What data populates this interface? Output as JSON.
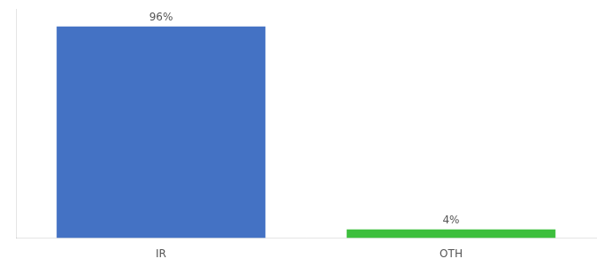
{
  "chart_data": {
    "type": "bar",
    "categories": [
      "IR",
      "OTH"
    ],
    "values": [
      96,
      4
    ],
    "value_labels": [
      "96%",
      "4%"
    ],
    "colors": [
      "#4472c4",
      "#3dbf3d"
    ],
    "ylim": [
      0,
      104
    ],
    "data_labels": true,
    "grid": false,
    "tick_labels": "x"
  }
}
